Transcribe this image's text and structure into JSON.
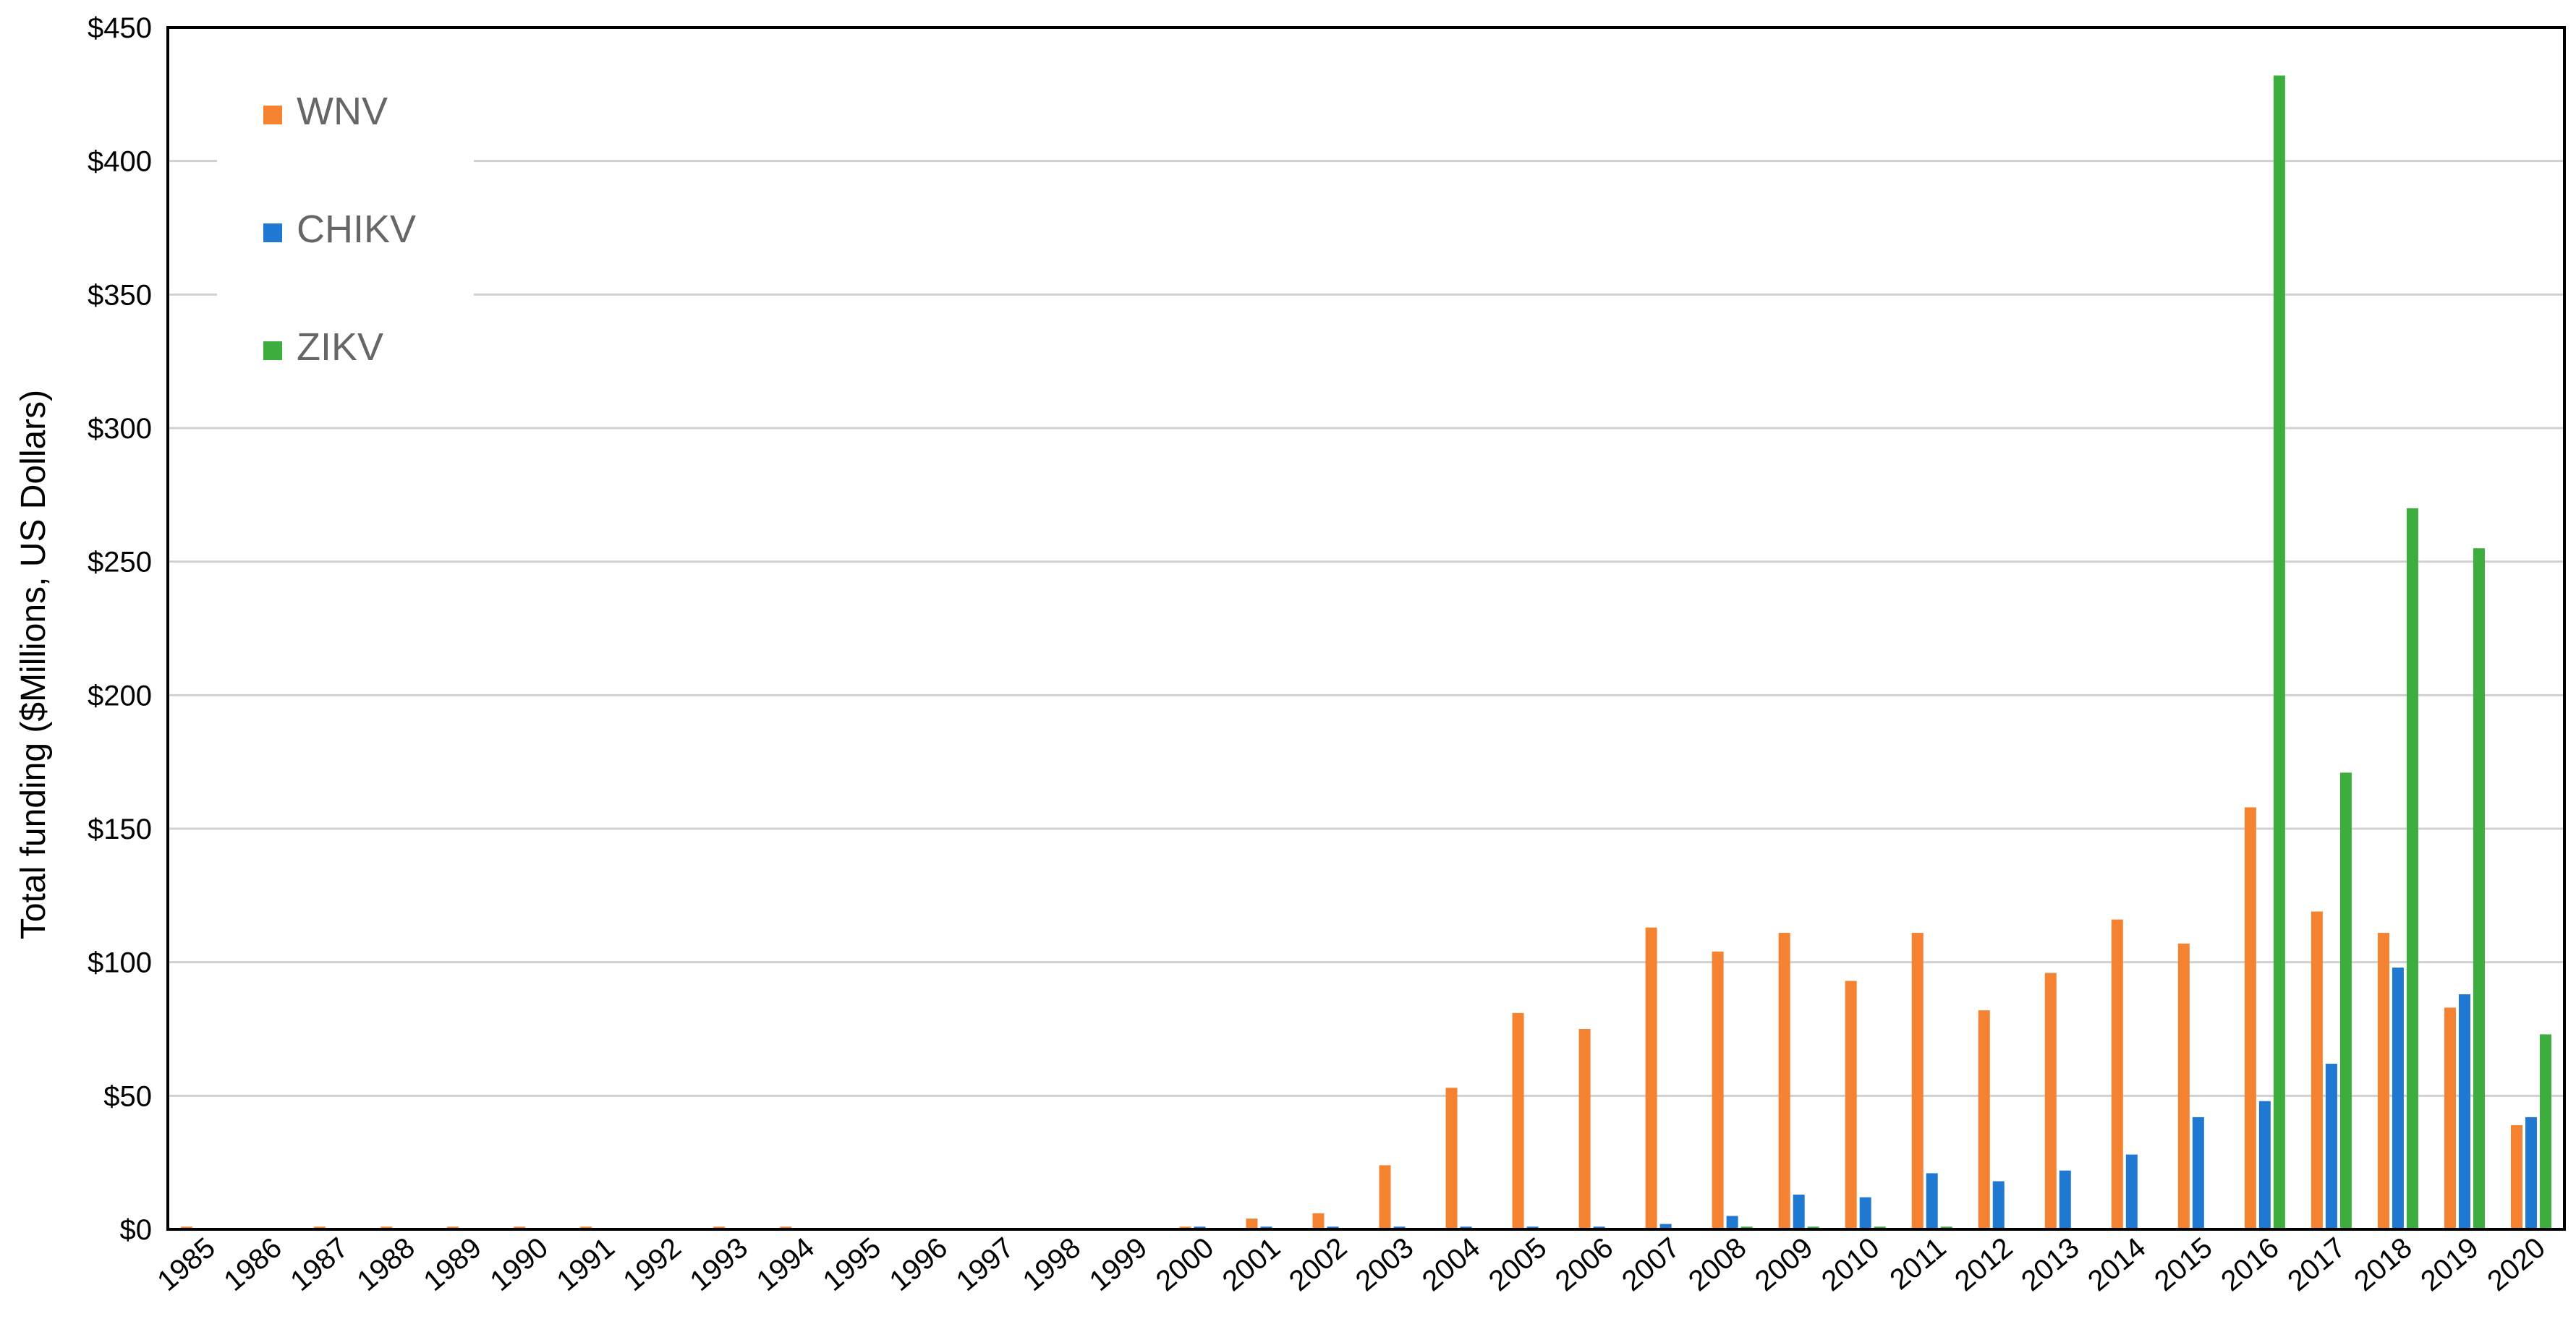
{
  "chart_data": {
    "type": "bar",
    "title": "",
    "xlabel": "",
    "ylabel": "Total funding ($Millions, US Dollars)",
    "ylim": [
      0,
      450
    ],
    "yticks": [
      "$0",
      "$50",
      "$100",
      "$150",
      "$200",
      "$250",
      "$300",
      "$350",
      "$400",
      "$450"
    ],
    "ytick_values": [
      0,
      50,
      100,
      150,
      200,
      250,
      300,
      350,
      400,
      450
    ],
    "grid": true,
    "legend_position": "top-left",
    "categories": [
      "1985",
      "1986",
      "1987",
      "1988",
      "1989",
      "1990",
      "1991",
      "1992",
      "1993",
      "1994",
      "1995",
      "1996",
      "1997",
      "1998",
      "1999",
      "2000",
      "2001",
      "2002",
      "2003",
      "2004",
      "2005",
      "2006",
      "2007",
      "2008",
      "2009",
      "2010",
      "2011",
      "2012",
      "2013",
      "2014",
      "2015",
      "2016",
      "2017",
      "2018",
      "2019",
      "2020"
    ],
    "series": [
      {
        "name": "WNV",
        "color": "#F58231",
        "values": [
          1,
          0,
          1,
          1,
          1,
          1,
          1,
          0,
          1,
          1,
          0,
          0,
          0,
          0,
          0,
          1,
          4,
          6,
          24,
          53,
          81,
          75,
          113,
          104,
          111,
          93,
          111,
          82,
          96,
          116,
          107,
          158,
          119,
          111,
          83,
          39
        ]
      },
      {
        "name": "CHIKV",
        "color": "#1F78D1",
        "values": [
          0,
          0,
          0,
          0,
          0,
          0,
          0,
          0,
          0,
          0,
          0,
          0,
          0,
          0,
          0,
          1,
          1,
          1,
          1,
          1,
          1,
          1,
          2,
          5,
          13,
          12,
          21,
          18,
          22,
          28,
          42,
          48,
          62,
          98,
          88,
          42
        ]
      },
      {
        "name": "ZIKV",
        "color": "#3DAE3D",
        "values": [
          0,
          0,
          0,
          0,
          0,
          0,
          0,
          0,
          0,
          0,
          0,
          0,
          0,
          0,
          0,
          0,
          0,
          0,
          0,
          0,
          0,
          0,
          0,
          1,
          1,
          1,
          1,
          0,
          0,
          0,
          0,
          432,
          171,
          270,
          255,
          73
        ]
      }
    ]
  }
}
